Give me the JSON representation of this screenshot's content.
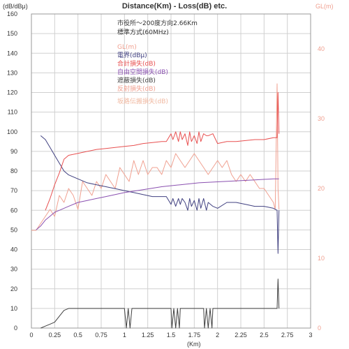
{
  "chart_data": {
    "type": "line",
    "title": "Distance(Km) - Loss(dB) etc.",
    "left_axis_label": "(dB/dBμ)",
    "right_axis_label": "GL(m)",
    "xlabel": "(Km)",
    "xlim": [
      0,
      3
    ],
    "ylim_left": [
      0,
      160
    ],
    "ylim_right": [
      0,
      45
    ],
    "x_ticks": [
      "0",
      "0.25",
      "0.5",
      "0.75",
      "1",
      "1.25",
      "1.5",
      "1.75",
      "2",
      "2.25",
      "2.5",
      "2.75",
      "3"
    ],
    "y_ticks_left": [
      "0",
      "10",
      "20",
      "30",
      "40",
      "50",
      "60",
      "70",
      "80",
      "90",
      "100",
      "110",
      "120",
      "130",
      "140",
      "150",
      "160"
    ],
    "y_ticks_right": [
      "0",
      "10",
      "20",
      "30",
      "40"
    ],
    "info_lines": [
      "市役所〜200度方向2.66Km",
      "標準方式(60MHz)"
    ],
    "grid": true,
    "colors": {
      "gl": "#f0a090",
      "field": "#404080",
      "total_loss": "#e85050",
      "free_space": "#8a50b0",
      "shadow": "#404040",
      "reflection": "#f0a090",
      "diffraction": "#f0b8a0"
    },
    "series": [
      {
        "name": "GL(m)",
        "axis": "right",
        "x": [
          0,
          0.05,
          0.1,
          0.15,
          0.2,
          0.25,
          0.3,
          0.35,
          0.4,
          0.45,
          0.5,
          0.55,
          0.6,
          0.65,
          0.7,
          0.75,
          0.8,
          0.85,
          0.9,
          0.95,
          1.0,
          1.05,
          1.1,
          1.15,
          1.2,
          1.25,
          1.3,
          1.35,
          1.4,
          1.45,
          1.5,
          1.55,
          1.6,
          1.65,
          1.7,
          1.75,
          1.8,
          1.85,
          1.9,
          1.95,
          2.0,
          2.05,
          2.1,
          2.15,
          2.2,
          2.25,
          2.3,
          2.35,
          2.4,
          2.45,
          2.5,
          2.55,
          2.6,
          2.62,
          2.64,
          2.65,
          2.66
        ],
        "values": [
          14,
          14,
          15,
          16,
          17,
          16,
          19,
          18,
          20,
          19,
          17,
          21,
          20,
          19,
          21,
          20,
          22,
          21,
          20,
          23,
          22,
          21,
          24,
          22,
          24,
          22,
          23,
          23,
          22,
          24,
          23,
          25,
          24,
          23,
          24,
          25,
          24,
          23,
          22,
          23,
          24,
          23,
          24,
          22,
          21,
          22,
          21,
          22,
          21,
          20,
          20,
          19,
          18,
          17,
          35,
          20,
          17
        ]
      },
      {
        "name": "電界(dBμ)",
        "axis": "left",
        "x": [
          0.1,
          0.15,
          0.2,
          0.25,
          0.3,
          0.35,
          0.4,
          0.5,
          0.6,
          0.7,
          0.8,
          0.9,
          1.0,
          1.1,
          1.2,
          1.3,
          1.4,
          1.45,
          1.5,
          1.52,
          1.55,
          1.58,
          1.6,
          1.62,
          1.65,
          1.68,
          1.7,
          1.72,
          1.75,
          1.78,
          1.8,
          1.82,
          1.85,
          1.88,
          1.9,
          1.95,
          2.0,
          2.1,
          2.2,
          2.3,
          2.4,
          2.5,
          2.6,
          2.64,
          2.65,
          2.66
        ],
        "values": [
          98,
          96,
          92,
          88,
          84,
          80,
          78,
          76,
          74,
          73,
          72,
          71,
          70,
          69,
          68,
          67,
          67,
          67,
          63,
          66,
          62,
          66,
          63,
          66,
          64,
          60,
          66,
          62,
          65,
          60,
          66,
          61,
          66,
          60,
          64,
          62,
          61,
          64,
          64,
          63,
          62,
          62,
          61,
          60,
          38,
          60
        ]
      },
      {
        "name": "合計損失(dB)",
        "axis": "left",
        "x": [
          0.15,
          0.2,
          0.25,
          0.3,
          0.35,
          0.4,
          0.5,
          0.6,
          0.7,
          0.8,
          0.9,
          1.0,
          1.1,
          1.2,
          1.3,
          1.4,
          1.45,
          1.5,
          1.52,
          1.55,
          1.58,
          1.6,
          1.62,
          1.65,
          1.68,
          1.7,
          1.72,
          1.75,
          1.78,
          1.8,
          1.82,
          1.85,
          1.88,
          1.9,
          1.95,
          2.0,
          2.1,
          2.2,
          2.3,
          2.4,
          2.5,
          2.6,
          2.64,
          2.65,
          2.66
        ],
        "values": [
          60,
          66,
          73,
          79,
          86,
          88,
          89,
          90,
          91,
          91.5,
          92,
          92.5,
          93,
          94,
          94.5,
          95,
          95,
          99,
          96,
          100,
          95,
          100,
          96,
          99,
          93,
          100,
          95,
          98,
          94,
          100,
          95,
          99,
          98,
          98,
          99,
          94,
          95,
          95,
          95.5,
          96,
          96,
          97,
          97,
          120,
          99
        ]
      },
      {
        "name": "自由空間損失(dB)",
        "axis": "left",
        "x": [
          0.05,
          0.1,
          0.15,
          0.2,
          0.25,
          0.3,
          0.4,
          0.5,
          0.6,
          0.7,
          0.8,
          0.9,
          1.0,
          1.2,
          1.4,
          1.6,
          1.8,
          2.0,
          2.2,
          2.4,
          2.6,
          2.66
        ],
        "values": [
          50,
          52,
          55,
          57,
          59,
          60,
          62,
          64,
          65,
          66,
          67,
          68,
          69,
          70.5,
          72,
          73,
          74,
          74.5,
          75,
          75.5,
          76,
          76
        ]
      },
      {
        "name": "遮蔽損失(dB)",
        "axis": "left",
        "x": [
          0.1,
          0.15,
          0.2,
          0.25,
          0.3,
          0.35,
          0.4,
          0.6,
          0.8,
          1.0,
          1.02,
          1.04,
          1.06,
          1.08,
          1.1,
          1.4,
          1.5,
          1.51,
          1.53,
          1.55,
          1.57,
          1.59,
          1.6,
          1.85,
          1.86,
          1.88,
          1.9,
          1.92,
          1.94,
          1.95,
          2.64,
          2.65,
          2.66
        ],
        "values": [
          0,
          1,
          2,
          3,
          6,
          9,
          10,
          10,
          10,
          10,
          0,
          10,
          0,
          10,
          10,
          10,
          10,
          0,
          10,
          0,
          10,
          0,
          10,
          10,
          0,
          10,
          0,
          10,
          0,
          10,
          10,
          25,
          10
        ]
      }
    ],
    "legend_extra": [
      "反射損失(dB)",
      "坂路伝搬損失(dB)"
    ]
  }
}
